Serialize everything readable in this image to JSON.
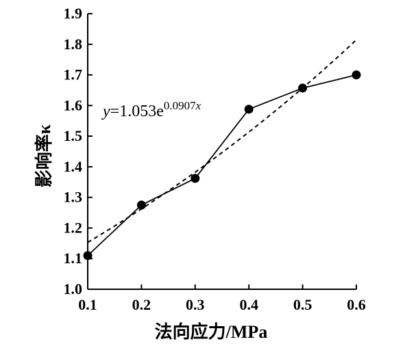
{
  "chart_data": {
    "type": "line",
    "xlabel": "法向应力/MPa",
    "ylabel": "影响率κ",
    "xlim": [
      0.1,
      0.6
    ],
    "ylim": [
      1.0,
      1.9
    ],
    "xticks": [
      "0.1",
      "0.2",
      "0.3",
      "0.4",
      "0.5",
      "0.6"
    ],
    "yticks": [
      "1.0",
      "1.1",
      "1.2",
      "1.3",
      "1.4",
      "1.5",
      "1.6",
      "1.7",
      "1.8",
      "1.9"
    ],
    "grid": false,
    "series": [
      {
        "style": "solid-line-with-markers",
        "x": [
          0.1,
          0.2,
          0.3,
          0.4,
          0.5,
          0.6
        ],
        "y": [
          1.11,
          1.275,
          1.362,
          1.588,
          1.657,
          1.7
        ]
      },
      {
        "style": "dashed-fit",
        "equation": {
          "var": "y",
          "coef": "=1.053e",
          "exponent": "0.0907",
          "exp_var": "x"
        },
        "a": 1.053,
        "b": 0.0907
      }
    ]
  }
}
